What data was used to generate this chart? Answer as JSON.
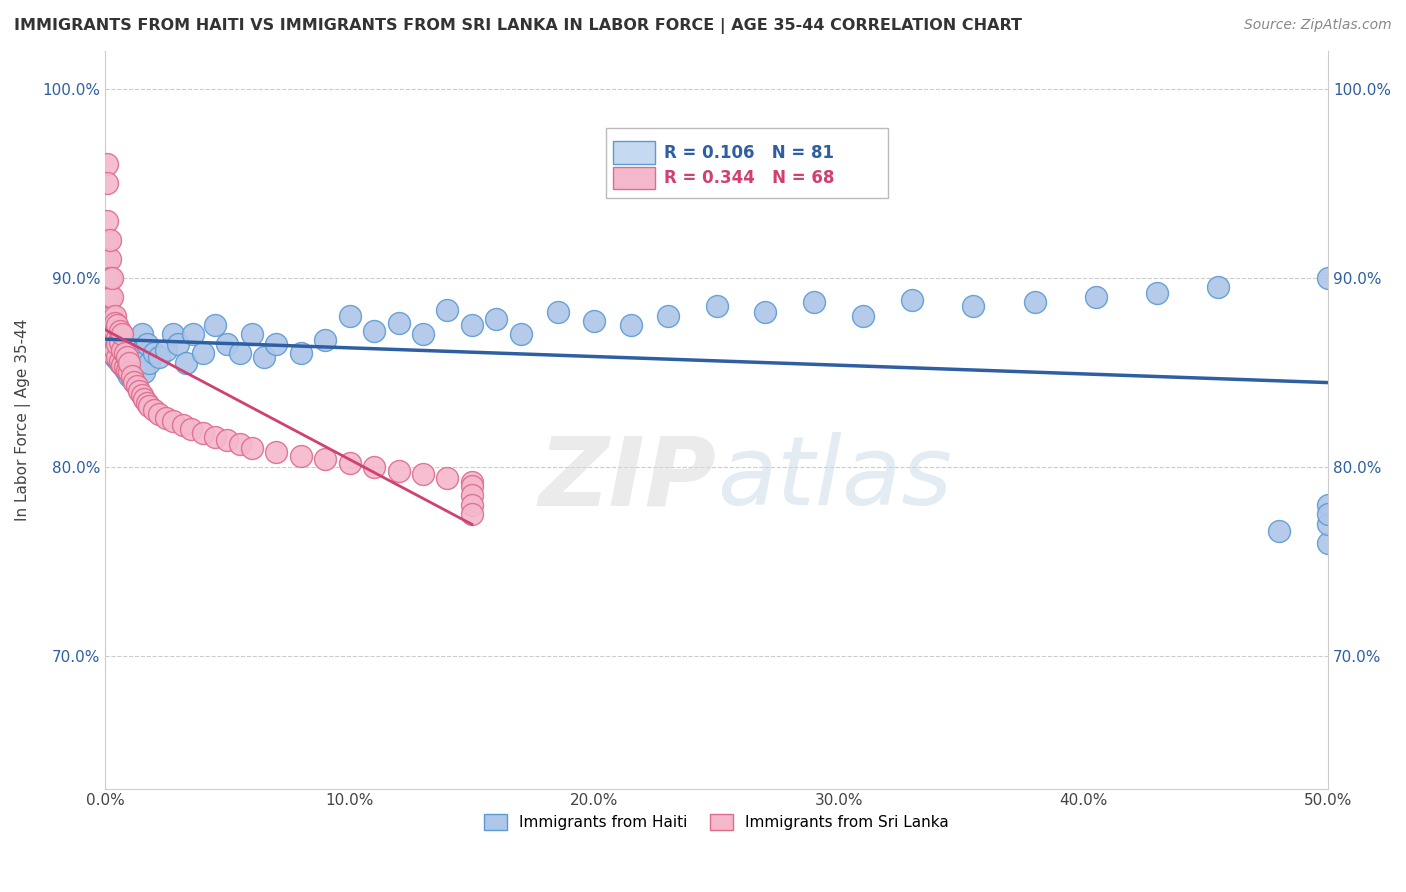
{
  "title": "IMMIGRANTS FROM HAITI VS IMMIGRANTS FROM SRI LANKA IN LABOR FORCE | AGE 35-44 CORRELATION CHART",
  "source": "Source: ZipAtlas.com",
  "xlabel_bottom": "Immigrants from Haiti",
  "xlabel_bottom2": "Immigrants from Sri Lanka",
  "ylabel": "In Labor Force | Age 35-44",
  "watermark": "ZIPatlas",
  "xlim": [
    0.0,
    0.5
  ],
  "ylim": [
    0.63,
    1.02
  ],
  "yticks": [
    0.7,
    0.8,
    0.9,
    1.0
  ],
  "ytick_labels": [
    "70.0%",
    "80.0%",
    "90.0%",
    "100.0%"
  ],
  "xticks": [
    0.0,
    0.1,
    0.2,
    0.3,
    0.4,
    0.5
  ],
  "xtick_labels": [
    "0.0%",
    "10.0%",
    "20.0%",
    "30.0%",
    "40.0%",
    "50.0%"
  ],
  "haiti_R": 0.106,
  "haiti_N": 81,
  "srilanka_R": 0.344,
  "srilanka_N": 68,
  "haiti_color": "#aec6e8",
  "haiti_edge_color": "#5b9bd5",
  "srilanka_color": "#f4b8cc",
  "srilanka_edge_color": "#e06b8b",
  "haiti_line_color": "#2e5fa3",
  "srilanka_line_color": "#d04070",
  "legend_box_haiti_color": "#c5d9f1",
  "legend_box_haiti_edge": "#5b9bd5",
  "legend_box_srilanka_color": "#f4b8cc",
  "legend_box_srilanka_edge": "#e06b8b",
  "legend_text_haiti_color": "#2e5fa3",
  "legend_text_srilanka_color": "#d04070",
  "haiti_x": [
    0.001,
    0.001,
    0.001,
    0.002,
    0.002,
    0.002,
    0.002,
    0.003,
    0.003,
    0.003,
    0.003,
    0.004,
    0.004,
    0.004,
    0.004,
    0.005,
    0.005,
    0.005,
    0.006,
    0.006,
    0.006,
    0.007,
    0.007,
    0.008,
    0.008,
    0.009,
    0.009,
    0.01,
    0.01,
    0.011,
    0.012,
    0.013,
    0.014,
    0.015,
    0.016,
    0.017,
    0.018,
    0.02,
    0.022,
    0.025,
    0.028,
    0.03,
    0.033,
    0.036,
    0.04,
    0.045,
    0.05,
    0.055,
    0.06,
    0.065,
    0.07,
    0.08,
    0.09,
    0.1,
    0.11,
    0.12,
    0.13,
    0.14,
    0.15,
    0.16,
    0.17,
    0.185,
    0.2,
    0.215,
    0.23,
    0.25,
    0.27,
    0.29,
    0.31,
    0.33,
    0.355,
    0.38,
    0.405,
    0.43,
    0.455,
    0.48,
    0.5,
    0.5,
    0.5,
    0.5,
    0.5
  ],
  "haiti_y": [
    0.87,
    0.875,
    0.88,
    0.862,
    0.868,
    0.873,
    0.878,
    0.86,
    0.865,
    0.87,
    0.876,
    0.858,
    0.863,
    0.868,
    0.874,
    0.857,
    0.862,
    0.866,
    0.855,
    0.86,
    0.865,
    0.854,
    0.858,
    0.852,
    0.857,
    0.85,
    0.855,
    0.848,
    0.853,
    0.847,
    0.845,
    0.86,
    0.855,
    0.87,
    0.85,
    0.865,
    0.855,
    0.86,
    0.858,
    0.862,
    0.87,
    0.865,
    0.855,
    0.87,
    0.86,
    0.875,
    0.865,
    0.86,
    0.87,
    0.858,
    0.865,
    0.86,
    0.867,
    0.88,
    0.872,
    0.876,
    0.87,
    0.883,
    0.875,
    0.878,
    0.87,
    0.882,
    0.877,
    0.875,
    0.88,
    0.885,
    0.882,
    0.887,
    0.88,
    0.888,
    0.885,
    0.887,
    0.89,
    0.892,
    0.895,
    0.766,
    0.78,
    0.76,
    0.77,
    0.775,
    0.9
  ],
  "srilanka_x": [
    0.001,
    0.001,
    0.001,
    0.001,
    0.001,
    0.002,
    0.002,
    0.002,
    0.002,
    0.002,
    0.002,
    0.003,
    0.003,
    0.003,
    0.003,
    0.003,
    0.004,
    0.004,
    0.004,
    0.004,
    0.005,
    0.005,
    0.005,
    0.005,
    0.006,
    0.006,
    0.006,
    0.007,
    0.007,
    0.007,
    0.008,
    0.008,
    0.009,
    0.009,
    0.01,
    0.01,
    0.011,
    0.012,
    0.013,
    0.014,
    0.015,
    0.016,
    0.017,
    0.018,
    0.02,
    0.022,
    0.025,
    0.028,
    0.032,
    0.035,
    0.04,
    0.045,
    0.05,
    0.055,
    0.06,
    0.07,
    0.08,
    0.09,
    0.1,
    0.11,
    0.12,
    0.13,
    0.14,
    0.15,
    0.15,
    0.15,
    0.15,
    0.15
  ],
  "srilanka_y": [
    0.92,
    0.96,
    0.95,
    0.93,
    0.91,
    0.89,
    0.87,
    0.91,
    0.88,
    0.9,
    0.92,
    0.86,
    0.88,
    0.87,
    0.89,
    0.9,
    0.862,
    0.872,
    0.88,
    0.876,
    0.858,
    0.868,
    0.875,
    0.865,
    0.856,
    0.866,
    0.872,
    0.854,
    0.862,
    0.87,
    0.853,
    0.86,
    0.851,
    0.858,
    0.85,
    0.855,
    0.848,
    0.845,
    0.843,
    0.84,
    0.838,
    0.836,
    0.834,
    0.832,
    0.83,
    0.828,
    0.826,
    0.824,
    0.822,
    0.82,
    0.818,
    0.816,
    0.814,
    0.812,
    0.81,
    0.808,
    0.806,
    0.804,
    0.802,
    0.8,
    0.798,
    0.796,
    0.794,
    0.792,
    0.79,
    0.785,
    0.78,
    0.775
  ]
}
